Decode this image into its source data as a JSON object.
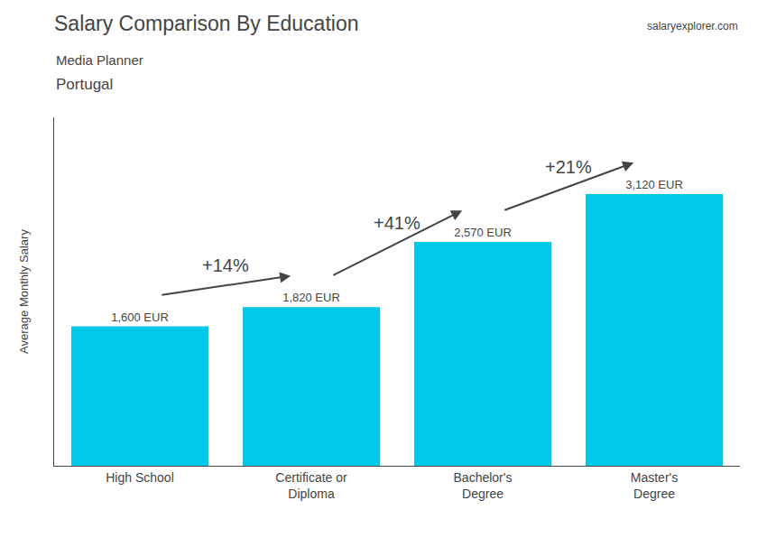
{
  "chart_data": {
    "type": "bar",
    "title": "Salary Comparison By Education",
    "subtitle": [
      "Media Planner",
      "Portugal"
    ],
    "ylabel": "Average Monthly Salary",
    "categories": [
      "High School",
      "Certificate or\nDiploma",
      "Bachelor's\nDegree",
      "Master's\nDegree"
    ],
    "values": [
      1600,
      1820,
      2570,
      3120
    ],
    "value_labels": [
      "1,600 EUR",
      "1,820 EUR",
      "2,570 EUR",
      "3,120 EUR"
    ],
    "data_labels": true,
    "color": "#00c8e8",
    "ylim": [
      0,
      4000
    ],
    "grid": false,
    "tick_labels": "x",
    "annotations": [
      {
        "text": "+14%",
        "from": "High School",
        "to": "Certificate or\nDiploma"
      },
      {
        "text": "+41%",
        "from": "Certificate or\nDiploma",
        "to": "Bachelor's\nDegree"
      },
      {
        "text": "+21%",
        "from": "Bachelor's\nDegree",
        "to": "Master's\nDegree"
      },
      {
        "text": "salaryexplorer.com"
      }
    ]
  }
}
